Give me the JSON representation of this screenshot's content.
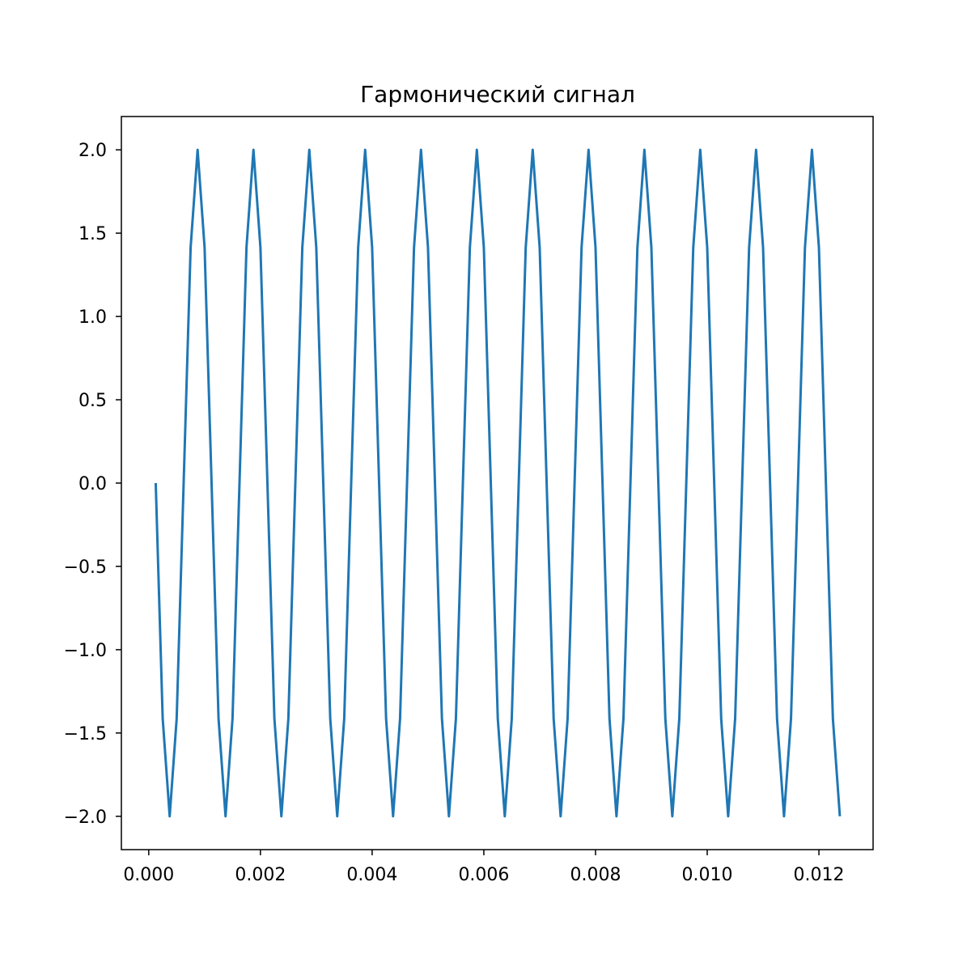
{
  "chart_data": {
    "type": "line",
    "title": "Гармонический сигнал",
    "xlabel": "",
    "ylabel": "",
    "xlim": [
      -0.00049,
      0.01297
    ],
    "ylim": [
      -2.2,
      2.2
    ],
    "grid": false,
    "legend": "none",
    "x_ticks": [
      0.0,
      0.002,
      0.004,
      0.006,
      0.008,
      0.01,
      0.012
    ],
    "x_tick_labels": [
      "0.000",
      "0.002",
      "0.004",
      "0.006",
      "0.008",
      "0.010",
      "0.012"
    ],
    "y_ticks": [
      2.0,
      1.5,
      1.0,
      0.5,
      0.0,
      -0.5,
      -1.0,
      -1.5,
      -2.0
    ],
    "y_tick_labels": [
      "2.0",
      "1.5",
      "1.0",
      "0.5",
      "0.0",
      "−0.5",
      "−1.0",
      "−1.5",
      "−2.0"
    ],
    "series": [
      {
        "color": "#1f77b4",
        "x": [
          0.000125,
          0.00025,
          0.000375,
          0.0005,
          0.000625,
          0.00075,
          0.000875,
          0.001,
          0.001125,
          0.00125,
          0.001375,
          0.0015,
          0.001625,
          0.00175,
          0.001875,
          0.002,
          0.002125,
          0.00225,
          0.002375,
          0.0025,
          0.002625,
          0.00275,
          0.002875,
          0.003,
          0.003125,
          0.00325,
          0.003375,
          0.0035,
          0.003625,
          0.00375,
          0.003875,
          0.004,
          0.004125,
          0.00425,
          0.004375,
          0.0045,
          0.004625,
          0.00475,
          0.004875,
          0.005,
          0.005125,
          0.00525,
          0.005375,
          0.0055,
          0.005625,
          0.00575,
          0.005875,
          0.006,
          0.006125,
          0.00625,
          0.006375,
          0.0065,
          0.006625,
          0.00675,
          0.006875,
          0.007,
          0.007125,
          0.00725,
          0.007375,
          0.0075,
          0.007625,
          0.00775,
          0.007875,
          0.008,
          0.008125,
          0.00825,
          0.008375,
          0.0085,
          0.008625,
          0.00875,
          0.008875,
          0.009,
          0.009125,
          0.00925,
          0.009375,
          0.0095,
          0.009625,
          0.00975,
          0.009875,
          0.01,
          0.010125,
          0.01025,
          0.010375,
          0.0105,
          0.010625,
          0.01075,
          0.010875,
          0.011,
          0.011125,
          0.01125,
          0.011375,
          0.0115,
          0.011625,
          0.01175,
          0.011875,
          0.012,
          0.012125,
          0.01225,
          0.012375
        ],
        "y": [
          0,
          -1.414,
          -2,
          -1.414,
          0,
          1.414,
          2,
          1.414,
          0,
          -1.414,
          -2,
          -1.414,
          0,
          1.414,
          2,
          1.414,
          0,
          -1.414,
          -2,
          -1.414,
          0,
          1.414,
          2,
          1.414,
          0,
          -1.414,
          -2,
          -1.414,
          0,
          1.414,
          2,
          1.414,
          0,
          -1.414,
          -2,
          -1.414,
          0,
          1.414,
          2,
          1.414,
          0,
          -1.414,
          -2,
          -1.414,
          0,
          1.414,
          2,
          1.414,
          0,
          -1.414,
          -2,
          -1.414,
          0,
          1.414,
          2,
          1.414,
          0,
          -1.414,
          -2,
          -1.414,
          0,
          1.414,
          2,
          1.414,
          0,
          -1.414,
          -2,
          -1.414,
          0,
          1.414,
          2,
          1.414,
          0,
          -1.414,
          -2,
          -1.414,
          0,
          1.414,
          2,
          1.414,
          0,
          -1.414,
          -2,
          -1.414,
          0,
          1.414,
          2,
          1.414,
          0,
          -1.414,
          -2,
          -1.414,
          0,
          1.414,
          2,
          1.414,
          0,
          -1.414,
          -2
        ]
      }
    ]
  }
}
